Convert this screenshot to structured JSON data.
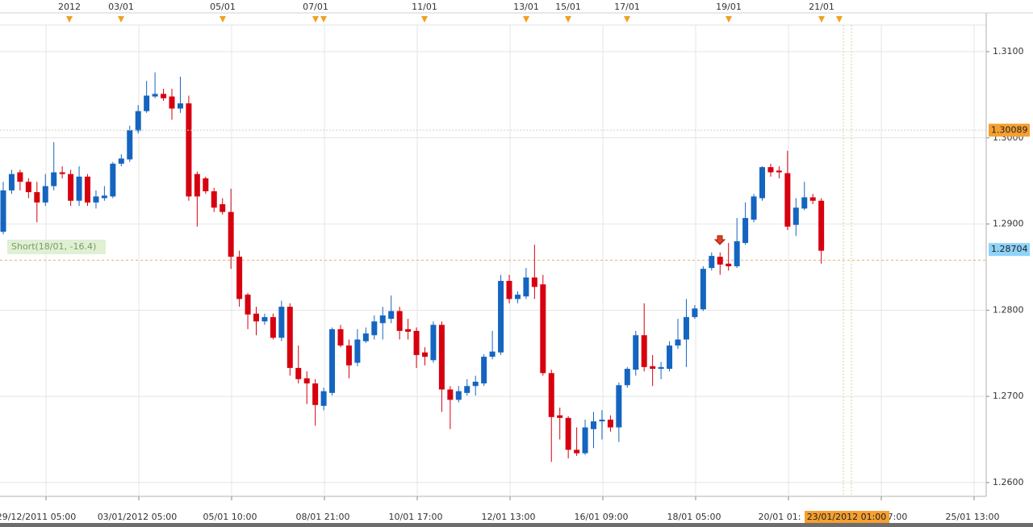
{
  "chart_data": {
    "type": "candlestick",
    "open": [
      1.2891,
      1.2939,
      1.296,
      1.2949,
      1.2937,
      1.2925,
      1.2944,
      1.296,
      1.2958,
      1.2927,
      1.2955,
      1.2925,
      1.293,
      1.2932,
      1.297,
      1.2975,
      1.3008,
      1.3031,
      1.3048,
      1.3051,
      1.3048,
      1.3034,
      1.304,
      1.2958,
      1.2953,
      1.2938,
      1.2923,
      1.2914,
      1.2862,
      1.2818,
      1.2796,
      1.2787,
      1.2792,
      1.2768,
      1.2804,
      1.2733,
      1.2721,
      1.2715,
      1.2689,
      1.2704,
      1.2778,
      1.2759,
      1.2739,
      1.2764,
      1.2771,
      1.2785,
      1.279,
      1.2799,
      1.2778,
      1.2776,
      1.2751,
      1.2742,
      1.2783,
      1.2708,
      1.2696,
      1.2704,
      1.2712,
      1.2715,
      1.2746,
      1.2751,
      1.2834,
      1.2813,
      1.2816,
      1.2838,
      1.283,
      1.2727,
      1.2678,
      1.2675,
      1.2638,
      1.2634,
      1.2662,
      1.2671,
      1.2673,
      1.2664,
      1.2713,
      1.2731,
      1.2771,
      1.2735,
      1.2732,
      1.2732,
      1.2759,
      1.2766,
      1.2792,
      1.2801,
      1.2849,
      1.2862,
      1.2854,
      1.2851,
      1.2878,
      1.2905,
      1.293,
      1.2966,
      1.2962,
      1.2959,
      1.2899,
      1.2918,
      1.2931,
      1.2927
    ],
    "high": [
      1.2949,
      1.2963,
      1.2963,
      1.2953,
      1.2949,
      1.2958,
      1.2995,
      1.2967,
      1.2963,
      1.2967,
      1.2958,
      1.2939,
      1.2944,
      1.2972,
      1.2981,
      1.3014,
      1.3038,
      1.3066,
      1.3076,
      1.3057,
      1.3057,
      1.3071,
      1.3049,
      1.2961,
      1.2955,
      1.2942,
      1.293,
      1.2941,
      1.2869,
      1.282,
      1.2804,
      1.2796,
      1.2796,
      1.2811,
      1.2808,
      1.2759,
      1.2729,
      1.272,
      1.271,
      1.278,
      1.2783,
      1.2766,
      1.2778,
      1.278,
      1.2794,
      1.2804,
      1.2817,
      1.2804,
      1.279,
      1.278,
      1.2757,
      1.2787,
      1.2787,
      1.2712,
      1.2712,
      1.272,
      1.2724,
      1.2749,
      1.2776,
      1.2841,
      1.2841,
      1.2822,
      1.2849,
      1.2876,
      1.2841,
      1.2731,
      1.2687,
      1.2677,
      1.2664,
      1.2673,
      1.2682,
      1.2684,
      1.2678,
      1.2716,
      1.2734,
      1.2776,
      1.2808,
      1.2748,
      1.274,
      1.2764,
      1.279,
      1.2813,
      1.2806,
      1.2851,
      1.2867,
      1.2867,
      1.2878,
      1.2907,
      1.2925,
      1.2935,
      1.2967,
      1.297,
      1.2967,
      1.2985,
      1.293,
      1.2949,
      1.2935,
      1.293
    ],
    "low": [
      1.2888,
      1.2935,
      1.2939,
      1.293,
      1.2902,
      1.2921,
      1.2939,
      1.2953,
      1.2921,
      1.2921,
      1.2921,
      1.2918,
      1.2927,
      1.293,
      1.2967,
      1.2972,
      1.3005,
      1.3029,
      1.3046,
      1.3043,
      1.3021,
      1.3029,
      1.2927,
      1.2897,
      1.2935,
      1.2914,
      1.2911,
      1.2848,
      1.2804,
      1.2778,
      1.2771,
      1.2783,
      1.2766,
      1.2764,
      1.2724,
      1.2715,
      1.2691,
      1.2666,
      1.2684,
      1.2701,
      1.2757,
      1.2721,
      1.2735,
      1.2762,
      1.2766,
      1.2766,
      1.2785,
      1.2766,
      1.2766,
      1.2733,
      1.2736,
      1.2739,
      1.2682,
      1.2662,
      1.2693,
      1.2701,
      1.2701,
      1.2712,
      1.2743,
      1.2748,
      1.2808,
      1.2808,
      1.2813,
      1.2813,
      1.2724,
      1.2624,
      1.265,
      1.2628,
      1.2631,
      1.2632,
      1.264,
      1.265,
      1.2659,
      1.2647,
      1.271,
      1.2724,
      1.2729,
      1.2712,
      1.272,
      1.2729,
      1.2755,
      1.2734,
      1.279,
      1.2799,
      1.2846,
      1.2841,
      1.2846,
      1.2849,
      1.2876,
      1.2902,
      1.2927,
      1.2955,
      1.2953,
      1.2893,
      1.2886,
      1.2916,
      1.2923,
      1.2854
    ],
    "close": [
      1.2939,
      1.2958,
      1.2949,
      1.2937,
      1.2925,
      1.2944,
      1.296,
      1.2958,
      1.2927,
      1.2955,
      1.2925,
      1.2932,
      1.2933,
      1.297,
      1.2976,
      1.3009,
      1.3031,
      1.3049,
      1.3051,
      1.3046,
      1.3034,
      1.304,
      1.2932,
      1.2932,
      1.2938,
      1.2919,
      1.2914,
      1.2862,
      1.2813,
      1.2795,
      1.2787,
      1.2792,
      1.2768,
      1.2804,
      1.2733,
      1.272,
      1.2715,
      1.269,
      1.2706,
      1.2778,
      1.2759,
      1.2736,
      1.2766,
      1.2773,
      1.2787,
      1.2794,
      1.2799,
      1.2776,
      1.2775,
      1.2748,
      1.2746,
      1.2783,
      1.2708,
      1.2696,
      1.2706,
      1.2712,
      1.2717,
      1.2746,
      1.2752,
      1.2834,
      1.2813,
      1.2818,
      1.2838,
      1.2827,
      1.2727,
      1.2676,
      1.2675,
      1.2638,
      1.2634,
      1.2664,
      1.2671,
      1.2673,
      1.2664,
      1.2713,
      1.2732,
      1.2771,
      1.2734,
      1.2732,
      1.2734,
      1.2759,
      1.2766,
      1.2792,
      1.2802,
      1.2848,
      1.2863,
      1.2853,
      1.2851,
      1.288,
      1.2907,
      1.2932,
      1.2966,
      1.296,
      1.296,
      1.2897,
      1.2919,
      1.2931,
      1.2927,
      1.2869
    ],
    "up_color": "#1565c0",
    "down_color": "#d7000f",
    "ylim": [
      1.2584,
      1.313
    ],
    "yticks": [
      {
        "value": 1.26,
        "label": "1.2600"
      },
      {
        "value": 1.27,
        "label": "1.2700"
      },
      {
        "value": 1.28,
        "label": "1.2800"
      },
      {
        "value": 1.29,
        "label": "1.2900"
      },
      {
        "value": 1.3,
        "label": "1.3000"
      },
      {
        "value": 1.31,
        "label": "1.3100"
      }
    ],
    "grid": true,
    "x_labels": [
      "29/12/2011 05:00",
      "03/01/2012 05:00",
      "05/01 10:00",
      "08/01 21:00",
      "10/01 17:00",
      "12/01 13:00",
      "16/01 09:00",
      "18/01 05:00",
      "20/01 01:",
      "7:00",
      "25/01 13:00"
    ],
    "top_labels": [
      "2012",
      "03/01",
      "05/01",
      "07/01",
      "11/01",
      "13/01",
      "15/01",
      "17/01",
      "19/01",
      "21/01"
    ],
    "price_tags": [
      {
        "value": 1.30089,
        "color": "#f5a030"
      },
      {
        "value": 1.28704,
        "color": "#8fd3f8"
      }
    ],
    "annotation": "Short(18/01, -16.4)",
    "short_entry": 1.2858,
    "cursor_label": "23/01/2012 01:00"
  }
}
